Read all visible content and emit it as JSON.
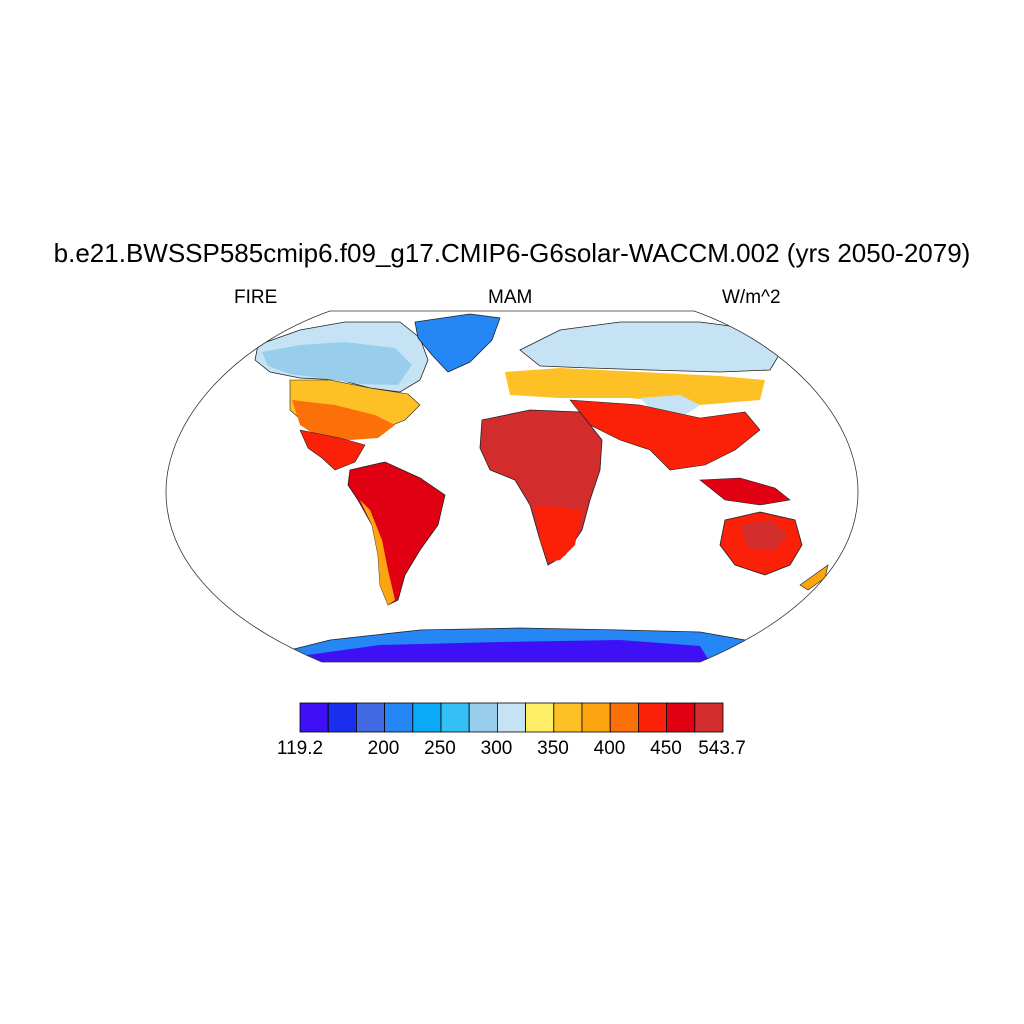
{
  "title": "b.e21.BWSSP585cmip6.f09_g17.CMIP6-G6solar-WACCM.002 (yrs 2050-2079)",
  "left_string": "FIRE",
  "center_string": "MAM",
  "right_string": "W/m^2",
  "colorbar": {
    "colors": [
      "#3f10f5",
      "#1a2ef0",
      "#4169e1",
      "#2586f5",
      "#0aaaf8",
      "#35c0f5",
      "#98cdeb",
      "#c6e3f5",
      "#fdee66",
      "#fec125",
      "#fda510",
      "#fc700a",
      "#fb2008",
      "#e00012",
      "#d22c2c"
    ],
    "labels": [
      {
        "text": "119.2",
        "boundary": 0
      },
      {
        "text": "200",
        "boundary": 2
      },
      {
        "text": "250",
        "boundary": 3
      },
      {
        "text": "300",
        "boundary": 4
      },
      {
        "text": "350",
        "boundary": 5
      },
      {
        "text": "400",
        "boundary": 6
      },
      {
        "text": "450",
        "boundary": 7
      },
      {
        "text": "543.7",
        "boundary": 8
      }
    ]
  }
}
